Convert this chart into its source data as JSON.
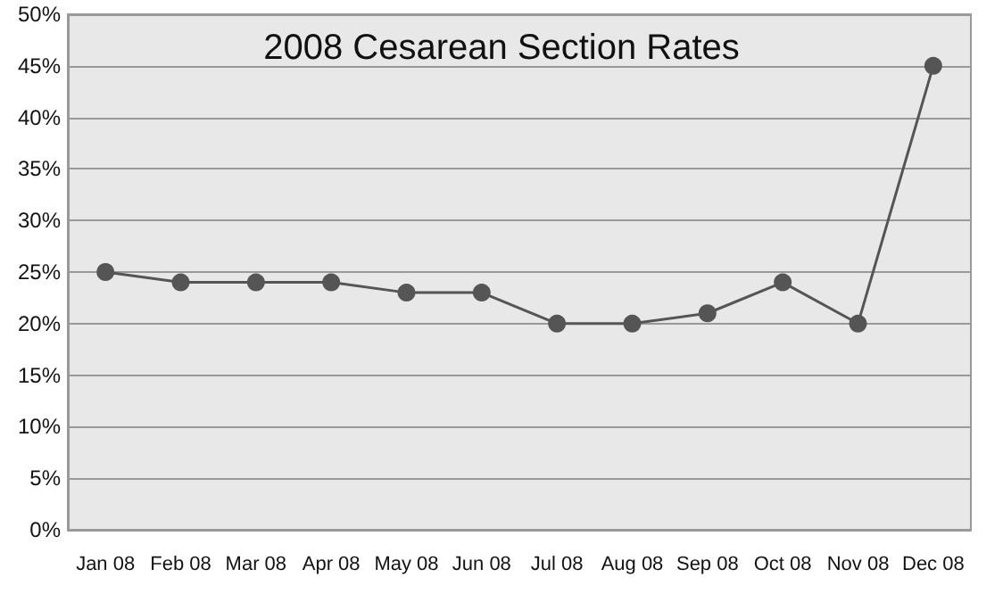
{
  "chart_data": {
    "type": "line",
    "title": "2008 Cesarean Section Rates",
    "categories": [
      "Jan 08",
      "Feb 08",
      "Mar 08",
      "Apr 08",
      "May 08",
      "Jun 08",
      "Jul 08",
      "Aug 08",
      "Sep 08",
      "Oct 08",
      "Nov 08",
      "Dec 08"
    ],
    "values": [
      25,
      24,
      24,
      24,
      23,
      23,
      20,
      20,
      21,
      24,
      20,
      45
    ],
    "color": "#555555",
    "ylim": [
      0,
      50
    ],
    "yticks": [
      {
        "value": 0,
        "label": "0%"
      },
      {
        "value": 5,
        "label": "5%"
      },
      {
        "value": 10,
        "label": "10%"
      },
      {
        "value": 15,
        "label": "15%"
      },
      {
        "value": 20,
        "label": "20%"
      },
      {
        "value": 25,
        "label": "25%"
      },
      {
        "value": 30,
        "label": "30%"
      },
      {
        "value": 35,
        "label": "35%"
      },
      {
        "value": 40,
        "label": "40%"
      },
      {
        "value": 45,
        "label": "45%"
      },
      {
        "value": 50,
        "label": "50%"
      }
    ],
    "grid": "y",
    "marker": "circle",
    "line_style": "solid"
  }
}
